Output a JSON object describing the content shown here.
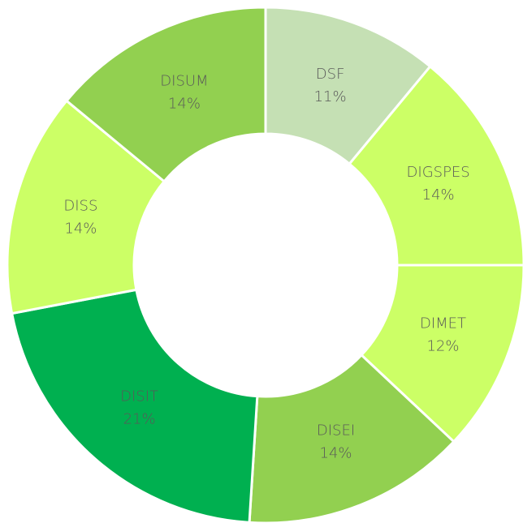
{
  "chart_data": {
    "type": "donut",
    "categories": [
      "DSF",
      "DIGSPES",
      "DIMET",
      "DISEI",
      "DISIT",
      "DISS",
      "DISUM"
    ],
    "values": [
      11,
      14,
      12,
      14,
      21,
      14,
      14
    ],
    "value_labels": [
      "11%",
      "14%",
      "12%",
      "14%",
      "21%",
      "14%",
      "14%"
    ],
    "colors": [
      "#c5e0b4",
      "#ccff66",
      "#ccff66",
      "#92d050",
      "#00b050",
      "#ccff66",
      "#92d050"
    ]
  }
}
